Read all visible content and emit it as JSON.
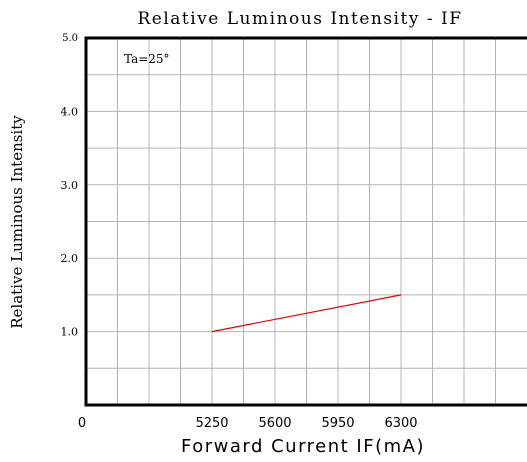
{
  "chart_data": {
    "type": "line",
    "title": "Relative Luminous Intensity - IF",
    "xlabel": "Forward Current IF(mA)",
    "ylabel": "Relative Luminous Intensity",
    "annotation": "Ta=25°",
    "x_tick_labels": [
      "0",
      "5250",
      "5600",
      "5950",
      "6300"
    ],
    "y_tick_labels": [
      "1.0",
      "2.0",
      "3.0",
      "4.0",
      "5.0"
    ],
    "xlim": [
      4550,
      7000
    ],
    "ylim": [
      0,
      5.0
    ],
    "grid": true,
    "series": [
      {
        "color": "#e00000",
        "x": [
          5250,
          6300
        ],
        "y": [
          1.0,
          1.5
        ]
      }
    ]
  }
}
